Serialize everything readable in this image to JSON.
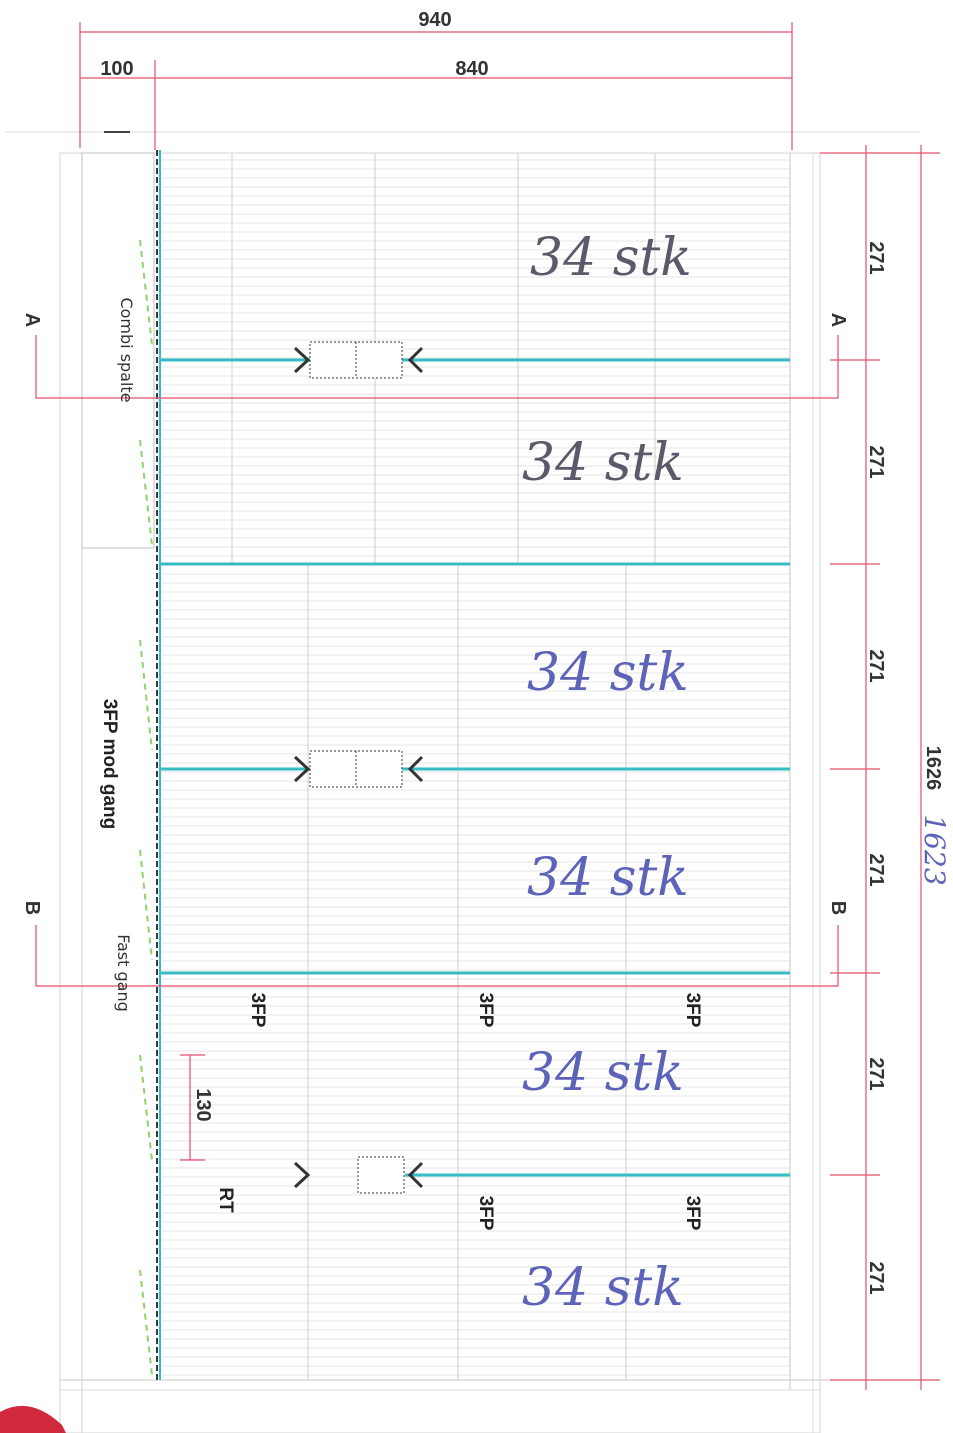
{
  "dimensions": {
    "overall_width": "940",
    "left_strip": "100",
    "main_width": "840",
    "total_length": "1626",
    "total_length_handwritten": "1623",
    "pen_height_130": "130",
    "section_heights": [
      "271",
      "271",
      "271",
      "271",
      "271",
      "271"
    ]
  },
  "section_markers": {
    "a": "A",
    "b": "B"
  },
  "labels": {
    "combi_spalte": "Combi spalte",
    "mod_gang": "3FP mod gang",
    "fast_gang": "Fast gang",
    "rt": "RT",
    "fp_marks": [
      "3FP",
      "3FP",
      "3FP",
      "3FP",
      "3FP"
    ]
  },
  "handwritten_counts": [
    "34 stk",
    "34 stk",
    "34 stk",
    "34 stk",
    "34 stk",
    "34 stk"
  ],
  "colors": {
    "dimension_line": "#e0506a",
    "feed_line": "#35bcc4",
    "handwriting_dark": "#5a5a6a",
    "handwriting_blue": "#5d63b8",
    "stamp": "#d0283c"
  }
}
